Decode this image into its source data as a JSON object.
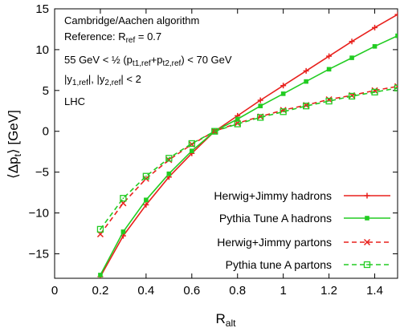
{
  "chart_data": {
    "type": "line",
    "xlabel": "R",
    "xlabel_sub": "alt",
    "ylabel": "⟨Δp",
    "ylabel_sub": "t",
    "ylabel_tail": "⟩ [GeV]",
    "xlim": [
      0,
      1.5
    ],
    "ylim": [
      -18,
      15
    ],
    "xticks": [
      0,
      0.2,
      0.4,
      0.6,
      0.8,
      1,
      1.2,
      1.4
    ],
    "xtick_labels": [
      "0",
      "0.2",
      "0.4",
      "0.6",
      "0.8",
      "1",
      "1.2",
      "1.4"
    ],
    "yticks": [
      -15,
      -10,
      -5,
      0,
      5,
      10,
      15
    ],
    "ytick_labels": [
      "−15",
      "−10",
      "−5",
      "0",
      "5",
      "10",
      "15"
    ],
    "grid": false,
    "legend_position": "bottom-right",
    "annotations": {
      "line1": "Cambridge/Aachen algorithm",
      "line2_pre": "Reference: R",
      "line2_sub": "ref",
      "line2_post": " = 0.7",
      "line3_pre": "55 GeV < ½ (p",
      "line3_sub1": "t1,ref",
      "line3_mid": "+p",
      "line3_sub2": "t2,ref",
      "line3_post": ") < 70 GeV",
      "line4_pre": "|y",
      "line4_sub1": "1,ref",
      "line4_mid": "|, |y",
      "line4_sub2": "2,ref",
      "line4_post": "| < 2",
      "line5": "LHC"
    },
    "series": [
      {
        "name": "Herwig+Jimmy hadrons",
        "color": "#e8211d",
        "dash": "solid",
        "marker": "plus",
        "x": [
          0.2,
          0.3,
          0.4,
          0.5,
          0.6,
          0.7,
          0.8,
          0.9,
          1.0,
          1.1,
          1.2,
          1.3,
          1.4,
          1.5
        ],
        "y": [
          -17.8,
          -12.8,
          -9.0,
          -5.6,
          -2.7,
          0.0,
          1.9,
          3.8,
          5.6,
          7.4,
          9.2,
          11.0,
          12.7,
          14.3
        ]
      },
      {
        "name": "Pythia Tune A hadrons",
        "color": "#22cc22",
        "dash": "solid",
        "marker": "filled-square",
        "x": [
          0.2,
          0.3,
          0.4,
          0.5,
          0.6,
          0.7,
          0.8,
          0.9,
          1.0,
          1.1,
          1.2,
          1.3,
          1.4,
          1.5
        ],
        "y": [
          -17.6,
          -12.3,
          -8.4,
          -5.2,
          -2.4,
          0.0,
          1.5,
          3.1,
          4.6,
          6.1,
          7.6,
          9.0,
          10.4,
          11.7
        ]
      },
      {
        "name": "Herwig+Jimmy partons",
        "color": "#e8211d",
        "dash": "dashed",
        "marker": "cross",
        "x": [
          0.2,
          0.3,
          0.4,
          0.5,
          0.6,
          0.7,
          0.8,
          0.9,
          1.0,
          1.1,
          1.2,
          1.3,
          1.4,
          1.5
        ],
        "y": [
          -12.6,
          -8.8,
          -5.8,
          -3.5,
          -1.6,
          0.0,
          1.0,
          1.8,
          2.6,
          3.2,
          3.9,
          4.4,
          5.0,
          5.5
        ]
      },
      {
        "name": "Pythia tune A partons",
        "color": "#22cc22",
        "dash": "dashed",
        "marker": "open-square",
        "x": [
          0.2,
          0.3,
          0.4,
          0.5,
          0.6,
          0.7,
          0.8,
          0.9,
          1.0,
          1.1,
          1.2,
          1.3,
          1.4,
          1.5
        ],
        "y": [
          -12.0,
          -8.2,
          -5.5,
          -3.3,
          -1.5,
          0.0,
          0.9,
          1.7,
          2.4,
          3.1,
          3.7,
          4.3,
          4.8,
          5.3
        ]
      }
    ]
  }
}
